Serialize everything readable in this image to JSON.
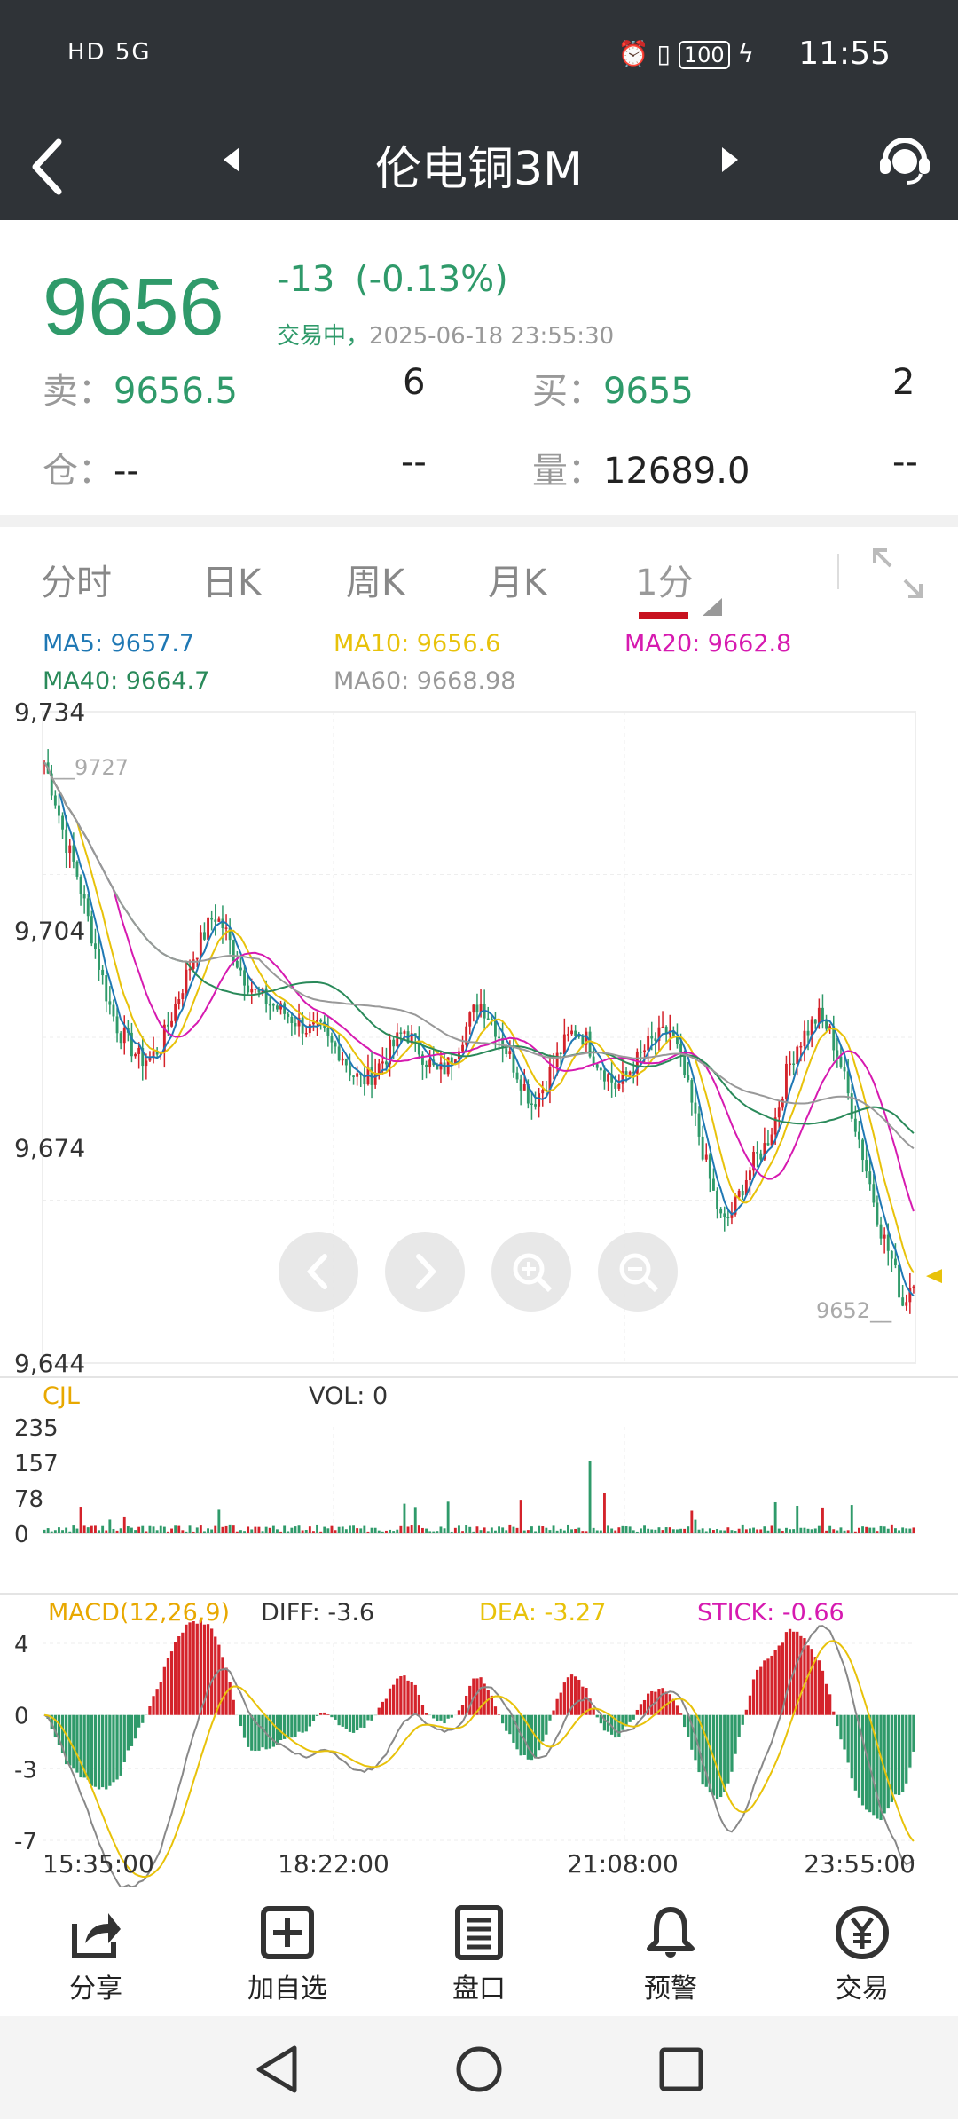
{
  "status_bar": {
    "left": "HD 5G",
    "battery": "100",
    "time": "11:55"
  },
  "header": {
    "title": "伦电铜3M"
  },
  "quote": {
    "price": "9656",
    "change": "-13",
    "change_pct": "(-0.13%)",
    "status": "交易中，",
    "timestamp": "2025-06-18 23:55:30",
    "sell_label": "卖：",
    "sell_price": "9656.5",
    "sell_qty": "6",
    "buy_label": "买：",
    "buy_price": "9655",
    "buy_qty": "2",
    "position_label": "仓：",
    "position_value": "--",
    "position_change": "--",
    "volume_label": "量：",
    "volume_value": "12689.0",
    "volume_change": "--"
  },
  "tabs": [
    {
      "label": "分时"
    },
    {
      "label": "日K"
    },
    {
      "label": "周K"
    },
    {
      "label": "月K"
    },
    {
      "label": "1分"
    }
  ],
  "ma_legend": {
    "ma5": "MA5: 9657.7",
    "ma10": "MA10: 9656.6",
    "ma20": "MA20: 9662.8",
    "ma40": "MA40: 9664.7",
    "ma60": "MA60: 9668.98"
  },
  "colors": {
    "up": "#d4232b",
    "down": "#2f9a6a",
    "ma5": "#1f78b4",
    "ma10": "#e8c20a",
    "ma20": "#d61ab0",
    "ma40": "#2a8a5a",
    "ma60": "#999999"
  },
  "chart_data": [
    {
      "type": "candlestick",
      "y_ticks": [
        "9,734",
        "9,704",
        "9,674",
        "9,644"
      ],
      "ylim": [
        9644,
        9734
      ],
      "high_label": "9727",
      "low_label": "9652",
      "last_price": 9656,
      "close_series": [
        9727,
        9722,
        9716,
        9712,
        9706,
        9700,
        9694,
        9690,
        9688,
        9686,
        9686,
        9688,
        9692,
        9696,
        9700,
        9703,
        9706,
        9704,
        9700,
        9697,
        9695,
        9694,
        9693,
        9692,
        9691,
        9690,
        9690,
        9688,
        9687,
        9684,
        9683,
        9684,
        9686,
        9688,
        9690,
        9688,
        9686,
        9684,
        9685,
        9688,
        9691,
        9694,
        9692,
        9689,
        9686,
        9683,
        9680,
        9682,
        9685,
        9688,
        9690,
        9689,
        9686,
        9684,
        9682,
        9684,
        9686,
        9688,
        9689,
        9690,
        9686,
        9680,
        9674,
        9668,
        9663,
        9665,
        9669,
        9672,
        9674,
        9678,
        9684,
        9688,
        9690,
        9692,
        9690,
        9686,
        9680,
        9674,
        9668,
        9662,
        9658,
        9652,
        9656
      ]
    },
    {
      "type": "bar",
      "title": "CJL",
      "vol_label": "VOL: 0",
      "y_ticks": [
        "235",
        "157",
        "78",
        "0"
      ],
      "ylim": [
        0,
        235
      ]
    },
    {
      "type": "bar",
      "title": "MACD(12,26,9)",
      "diff": "DIFF: -3.6",
      "dea": "DEA: -3.27",
      "stick": "STICK: -0.66",
      "y_ticks": [
        "4",
        "0",
        "-3",
        "-7"
      ],
      "ylim": [
        -7,
        4
      ],
      "x_ticks": [
        "15:35:00",
        "18:22:00",
        "21:08:00",
        "23:55:00"
      ]
    }
  ],
  "bottom_nav": [
    {
      "label": "分享",
      "icon": "share-icon"
    },
    {
      "label": "加自选",
      "icon": "add-box-icon"
    },
    {
      "label": "盘口",
      "icon": "list-doc-icon"
    },
    {
      "label": "预警",
      "icon": "bell-icon"
    },
    {
      "label": "交易",
      "icon": "yen-circle-icon"
    }
  ]
}
